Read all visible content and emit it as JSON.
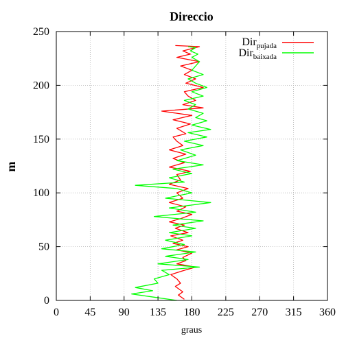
{
  "chart_data": {
    "type": "line",
    "title": "Direccio",
    "xlabel": "graus",
    "ylabel": "m",
    "xlim": [
      0,
      360
    ],
    "ylim": [
      0,
      250
    ],
    "xticks": [
      0,
      45,
      90,
      135,
      180,
      225,
      270,
      315,
      360
    ],
    "yticks": [
      0,
      50,
      100,
      150,
      200,
      250
    ],
    "grid": true,
    "legend_position": "top-right",
    "series": [
      {
        "name_main": "Dir",
        "name_sub": "pujada",
        "color": "#ff0000",
        "points": [
          [
            170,
            1
          ],
          [
            162,
            5
          ],
          [
            168,
            8
          ],
          [
            158,
            13
          ],
          [
            165,
            16
          ],
          [
            160,
            20
          ],
          [
            152,
            24
          ],
          [
            170,
            28
          ],
          [
            185,
            31
          ],
          [
            160,
            34
          ],
          [
            172,
            37
          ],
          [
            168,
            40
          ],
          [
            180,
            44
          ],
          [
            160,
            47
          ],
          [
            175,
            50
          ],
          [
            155,
            53
          ],
          [
            168,
            56
          ],
          [
            152,
            60
          ],
          [
            175,
            63
          ],
          [
            158,
            67
          ],
          [
            170,
            70
          ],
          [
            150,
            73
          ],
          [
            165,
            76
          ],
          [
            180,
            80
          ],
          [
            160,
            83
          ],
          [
            172,
            87
          ],
          [
            150,
            91
          ],
          [
            168,
            95
          ],
          [
            160,
            100
          ],
          [
            175,
            104
          ],
          [
            150,
            108
          ],
          [
            165,
            112
          ],
          [
            160,
            117
          ],
          [
            178,
            120
          ],
          [
            150,
            124
          ],
          [
            170,
            128
          ],
          [
            155,
            132
          ],
          [
            172,
            136
          ],
          [
            150,
            140
          ],
          [
            168,
            144
          ],
          [
            160,
            148
          ],
          [
            155,
            152
          ],
          [
            172,
            155
          ],
          [
            160,
            160
          ],
          [
            178,
            164
          ],
          [
            155,
            168
          ],
          [
            180,
            172
          ],
          [
            140,
            176
          ],
          [
            195,
            179
          ],
          [
            168,
            182
          ],
          [
            185,
            186
          ],
          [
            175,
            190
          ],
          [
            170,
            194
          ],
          [
            195,
            198
          ],
          [
            172,
            202
          ],
          [
            185,
            206
          ],
          [
            170,
            210
          ],
          [
            180,
            214
          ],
          [
            165,
            218
          ],
          [
            190,
            222
          ],
          [
            160,
            226
          ],
          [
            178,
            229
          ],
          [
            168,
            232
          ],
          [
            190,
            236
          ],
          [
            158,
            237
          ]
        ]
      },
      {
        "name_main": "Dir",
        "name_sub": "baixada",
        "color": "#00ff00",
        "points": [
          [
            160,
            0
          ],
          [
            130,
            3
          ],
          [
            100,
            6
          ],
          [
            128,
            9
          ],
          [
            105,
            12
          ],
          [
            135,
            16
          ],
          [
            130,
            20
          ],
          [
            150,
            24
          ],
          [
            140,
            28
          ],
          [
            190,
            31
          ],
          [
            135,
            34
          ],
          [
            175,
            38
          ],
          [
            145,
            41
          ],
          [
            185,
            45
          ],
          [
            140,
            48
          ],
          [
            170,
            52
          ],
          [
            145,
            56
          ],
          [
            180,
            60
          ],
          [
            150,
            63
          ],
          [
            185,
            67
          ],
          [
            155,
            70
          ],
          [
            195,
            74
          ],
          [
            130,
            78
          ],
          [
            185,
            82
          ],
          [
            150,
            86
          ],
          [
            205,
            91
          ],
          [
            145,
            95
          ],
          [
            180,
            100
          ],
          [
            160,
            104
          ],
          [
            105,
            107
          ],
          [
            170,
            110
          ],
          [
            150,
            114
          ],
          [
            180,
            118
          ],
          [
            155,
            122
          ],
          [
            195,
            126
          ],
          [
            160,
            130
          ],
          [
            185,
            135
          ],
          [
            165,
            140
          ],
          [
            195,
            144
          ],
          [
            170,
            148
          ],
          [
            200,
            152
          ],
          [
            175,
            156
          ],
          [
            205,
            159
          ],
          [
            180,
            163
          ],
          [
            200,
            167
          ],
          [
            185,
            170
          ],
          [
            195,
            174
          ],
          [
            175,
            178
          ],
          [
            185,
            182
          ],
          [
            170,
            186
          ],
          [
            195,
            190
          ],
          [
            180,
            194
          ],
          [
            200,
            198
          ],
          [
            185,
            202
          ],
          [
            175,
            206
          ],
          [
            195,
            210
          ],
          [
            180,
            214
          ],
          [
            185,
            218
          ],
          [
            190,
            222
          ],
          [
            180,
            226
          ],
          [
            188,
            229
          ],
          [
            178,
            232
          ],
          [
            185,
            235
          ],
          [
            175,
            236
          ]
        ]
      }
    ]
  }
}
